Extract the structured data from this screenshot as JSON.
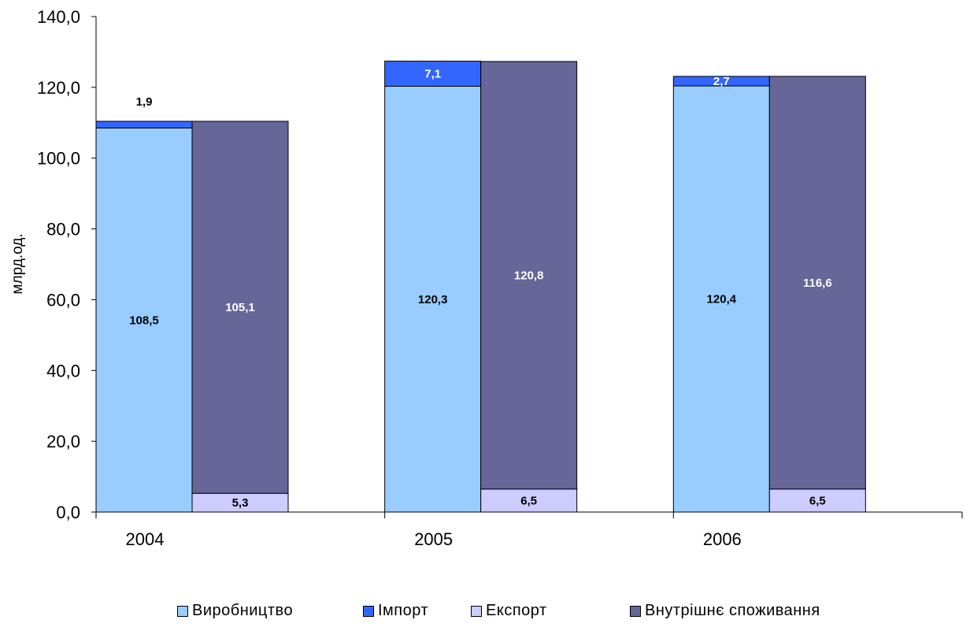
{
  "chart_data": {
    "type": "bar",
    "layout": "grouped-stacked",
    "categories": [
      "2004",
      "2005",
      "2006"
    ],
    "ylabel": "млрд.од.",
    "ylim": [
      0,
      140
    ],
    "yticks": [
      "0,0",
      "20,0",
      "40,0",
      "60,0",
      "80,0",
      "100,0",
      "120,0",
      "140,0"
    ],
    "grid": false,
    "legend_position": "bottom",
    "stacks": [
      {
        "series": [
          {
            "name": "Виробництво",
            "color": "#99CCFF",
            "values": [
              108.5,
              120.3,
              120.4
            ],
            "labels": [
              "108,5",
              "120,3",
              "120,4"
            ]
          },
          {
            "name": "Імпорт",
            "color": "#3366FF",
            "values": [
              1.9,
              7.1,
              2.7
            ],
            "labels": [
              "1,9",
              "7,1",
              "2,7"
            ]
          }
        ]
      },
      {
        "series": [
          {
            "name": "Експорт",
            "color": "#CCCCFF",
            "values": [
              5.3,
              6.5,
              6.5
            ],
            "labels": [
              "5,3",
              "6,5",
              "6,5"
            ]
          },
          {
            "name": "Внутрішнє споживання",
            "color": "#666699",
            "values": [
              105.1,
              120.8,
              116.6
            ],
            "labels": [
              "105,1",
              "120,8",
              "116,6"
            ]
          }
        ]
      }
    ]
  },
  "legend": [
    {
      "label": "Виробництво",
      "color": "#99CCFF"
    },
    {
      "label": "Імпорт",
      "color": "#3366FF"
    },
    {
      "label": "Експорт",
      "color": "#CCCCFF"
    },
    {
      "label": "Внутрішнє споживання",
      "color": "#666699"
    }
  ]
}
